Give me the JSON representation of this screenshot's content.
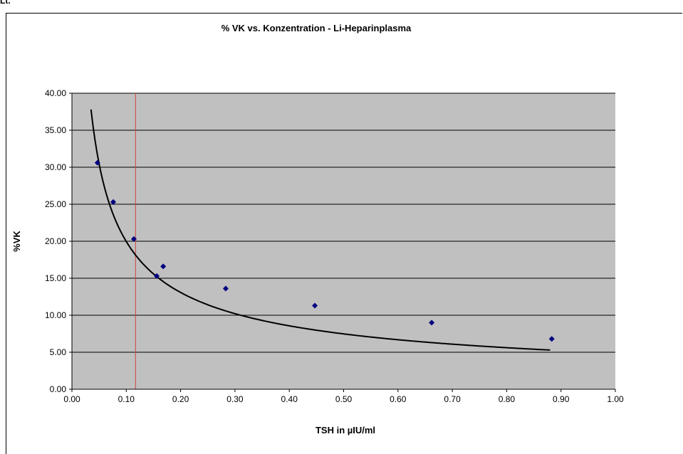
{
  "corner_label": "Lt.",
  "colors": {
    "plot_background": "#c0c0c0",
    "gridline": "#000000",
    "points": "#000080",
    "fit_curve": "#000000",
    "reference_line": "#d04040"
  },
  "chart_data": {
    "type": "scatter",
    "title": "% VK vs. Konzentration - Li-Heparinplasma",
    "xlabel": "TSH in µIU/ml",
    "ylabel": "%VK",
    "xlim": [
      0,
      1
    ],
    "ylim": [
      0,
      40
    ],
    "x_ticks": [
      "0.00",
      "0.10",
      "0.20",
      "0.30",
      "0.40",
      "0.50",
      "0.60",
      "0.70",
      "0.80",
      "0.90",
      "1.00"
    ],
    "y_ticks": [
      "0.00",
      "5.00",
      "10.00",
      "15.00",
      "20.00",
      "25.00",
      "30.00",
      "35.00",
      "40.00"
    ],
    "grid": "horizontal",
    "legend": "none",
    "series": [
      {
        "marker": "diamond",
        "points": [
          {
            "x": 0.047,
            "y": 30.6
          },
          {
            "x": 0.076,
            "y": 25.3
          },
          {
            "x": 0.114,
            "y": 20.3
          },
          {
            "x": 0.156,
            "y": 15.3
          },
          {
            "x": 0.168,
            "y": 16.6
          },
          {
            "x": 0.283,
            "y": 13.6
          },
          {
            "x": 0.447,
            "y": 11.3
          },
          {
            "x": 0.662,
            "y": 9.0
          },
          {
            "x": 0.883,
            "y": 6.8
          }
        ]
      }
    ],
    "trendline": {
      "type": "power",
      "a": 4.9,
      "b": -0.61,
      "x_range": [
        0.028,
        0.88
      ]
    },
    "reference_line": {
      "x": 0.117
    }
  }
}
